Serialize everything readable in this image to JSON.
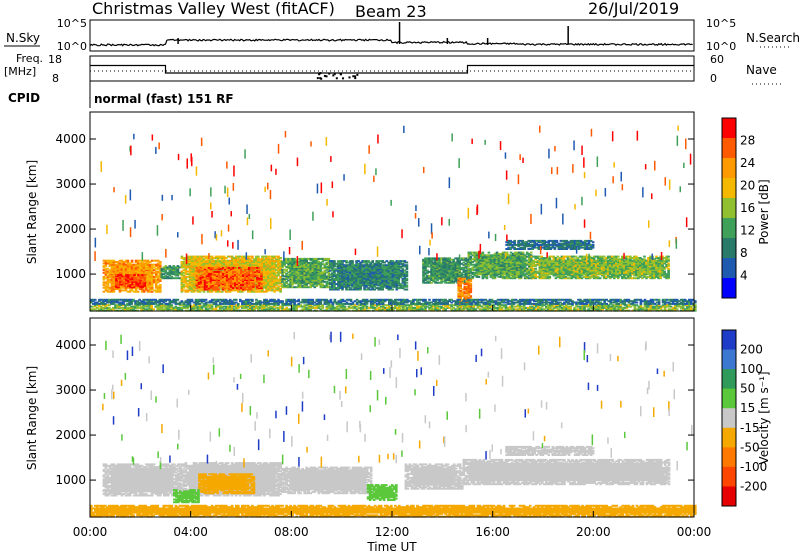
{
  "header": {
    "station": "Christmas Valley West (fitACF)",
    "beam": "Beam 23",
    "date": "26/Jul/2019"
  },
  "noise_panel": {
    "left_label": "N.Sky",
    "left_ticks": [
      "10^5",
      "10^0"
    ],
    "right_label": "N.Search",
    "right_ticks": [
      "10^5",
      "10^0"
    ]
  },
  "freq_panel": {
    "left_label_1": "Freq.",
    "left_label_2": "[MHz]",
    "left_ticks": [
      "18",
      "8"
    ],
    "right_label": "Nave",
    "right_ticks": [
      "60",
      "0"
    ]
  },
  "cpid_panel": {
    "label": "CPID",
    "text": "normal (fast) 151 RF"
  },
  "x_axis": {
    "title": "Time UT",
    "ticks": [
      "00:00",
      "04:00",
      "08:00",
      "12:00",
      "16:00",
      "20:00",
      "00:00"
    ]
  },
  "power_colorbar": {
    "label": "Power [dB]",
    "ticks": [
      "28",
      "24",
      "20",
      "16",
      "12",
      "8",
      "4"
    ],
    "colors": [
      "#ff0000",
      "#ff5a00",
      "#ff9a00",
      "#f5b800",
      "#90c030",
      "#3fa05a",
      "#2a7a6a",
      "#1e5ab0",
      "#0000ff"
    ]
  },
  "velocity_colorbar": {
    "label": "Velocity [m s⁻¹]",
    "ticks": [
      "200",
      "100",
      "50",
      "15",
      "-15",
      "-50",
      "-100",
      "-200"
    ],
    "colors": [
      "#1e3cc8",
      "#3c78d2",
      "#2f9a5a",
      "#5ac83a",
      "#c8c8c8",
      "#f5a800",
      "#ff7800",
      "#ff4600",
      "#e60000"
    ]
  },
  "chart_data": [
    {
      "type": "heatmap",
      "name": "power",
      "ylabel": "Slant Range [km]",
      "xlabel": "Time UT",
      "xlim": [
        0,
        24
      ],
      "ylim": [
        180,
        4600
      ],
      "yticks": [
        "1000",
        "2000",
        "3000",
        "4000"
      ],
      "color_scale": "Power [dB]",
      "patches": [
        {
          "t0": 0.5,
          "t1": 2.8,
          "r0": 600,
          "r1": 1300,
          "level": 22
        },
        {
          "t0": 1.0,
          "t1": 2.2,
          "r0": 700,
          "r1": 1000,
          "level": 28
        },
        {
          "t0": 2.8,
          "t1": 3.6,
          "r0": 900,
          "r1": 1200,
          "level": 10
        },
        {
          "t0": 3.6,
          "t1": 7.6,
          "r0": 600,
          "r1": 1400,
          "level": 18
        },
        {
          "t0": 4.2,
          "t1": 6.8,
          "r0": 650,
          "r1": 1150,
          "level": 26
        },
        {
          "t0": 7.6,
          "t1": 9.5,
          "r0": 700,
          "r1": 1350,
          "level": 12
        },
        {
          "t0": 9.5,
          "t1": 12.6,
          "r0": 650,
          "r1": 1300,
          "level": 8
        },
        {
          "t0": 13.2,
          "t1": 15.0,
          "r0": 800,
          "r1": 1350,
          "level": 10
        },
        {
          "t0": 14.6,
          "t1": 15.1,
          "r0": 200,
          "r1": 900,
          "level": 24
        },
        {
          "t0": 15.0,
          "t1": 17.5,
          "r0": 900,
          "r1": 1500,
          "level": 12
        },
        {
          "t0": 17.5,
          "t1": 23.0,
          "r0": 900,
          "r1": 1400,
          "level": 14
        },
        {
          "t0": 16.5,
          "t1": 20.0,
          "r0": 1550,
          "r1": 1750,
          "level": 6
        },
        {
          "t0": 0.0,
          "t1": 24.0,
          "r0": 180,
          "r1": 330,
          "level": 14
        },
        {
          "t0": 0.0,
          "t1": 24.0,
          "r0": 330,
          "r1": 450,
          "level": 6
        }
      ]
    },
    {
      "type": "heatmap",
      "name": "velocity",
      "ylabel": "Slant Range [km]",
      "xlabel": "Time UT",
      "xlim": [
        0,
        24
      ],
      "ylim": [
        180,
        4600
      ],
      "yticks": [
        "1000",
        "2000",
        "3000",
        "4000"
      ],
      "color_scale": "Velocity [m s⁻¹]",
      "patches": [
        {
          "t0": 0.5,
          "t1": 3.6,
          "r0": 650,
          "r1": 1350,
          "velocity": 0
        },
        {
          "t0": 3.6,
          "t1": 7.6,
          "r0": 650,
          "r1": 1400,
          "velocity": 0
        },
        {
          "t0": 4.3,
          "t1": 6.5,
          "r0": 700,
          "r1": 1150,
          "velocity": -40
        },
        {
          "t0": 3.3,
          "t1": 4.3,
          "r0": 500,
          "r1": 800,
          "velocity": 30
        },
        {
          "t0": 7.6,
          "t1": 11.2,
          "r0": 700,
          "r1": 1300,
          "velocity": 0
        },
        {
          "t0": 11.0,
          "t1": 12.2,
          "r0": 550,
          "r1": 900,
          "velocity": 30
        },
        {
          "t0": 12.5,
          "t1": 14.8,
          "r0": 800,
          "r1": 1350,
          "velocity": 0
        },
        {
          "t0": 14.8,
          "t1": 23.0,
          "r0": 900,
          "r1": 1450,
          "velocity": 0
        },
        {
          "t0": 16.5,
          "t1": 20.0,
          "r0": 1550,
          "r1": 1750,
          "velocity": 0
        },
        {
          "t0": 0.0,
          "t1": 24.0,
          "r0": 180,
          "r1": 450,
          "velocity": -40
        }
      ]
    },
    {
      "type": "line",
      "name": "frequency",
      "ylabel": "Freq. [MHz]",
      "ylim": [
        8,
        18
      ],
      "x": [
        0,
        3.0,
        3.0,
        15.0,
        15.0,
        24
      ],
      "values": [
        14.2,
        14.2,
        11.2,
        11.2,
        14.2,
        14.2
      ]
    },
    {
      "type": "line",
      "name": "noise",
      "ylabel": "N.Sky",
      "yscale": "log",
      "ylim": [
        1,
        100000
      ],
      "x": [
        0,
        3.0,
        3.0,
        12.0,
        15.0,
        17.0,
        24
      ],
      "values": [
        10,
        10,
        100,
        30,
        15,
        20,
        5
      ]
    }
  ]
}
